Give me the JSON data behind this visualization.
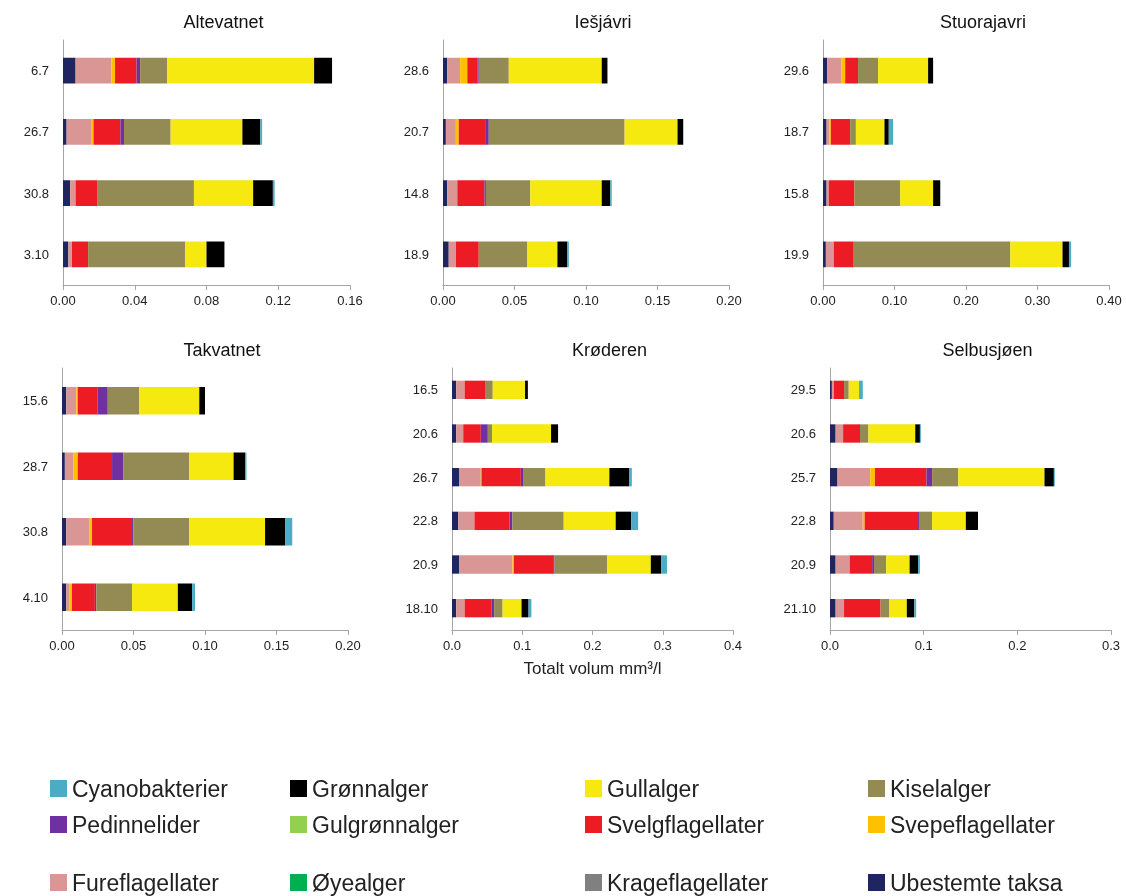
{
  "chart_data": [
    {
      "type": "bar",
      "orientation": "horizontal",
      "stacked": true,
      "title": "Altevatnet",
      "legend": "bottom",
      "categories": [
        "6.7",
        "26.7",
        "30.8",
        "3.10"
      ],
      "xlim": [
        0,
        0.16
      ],
      "xticks": [
        {
          "value": 0,
          "label": "0.00"
        },
        {
          "value": 0.04,
          "label": "0.04"
        },
        {
          "value": 0.08,
          "label": "0.08"
        },
        {
          "value": 0.12,
          "label": "0.12"
        },
        {
          "value": 0.16,
          "label": "0.16"
        }
      ],
      "series": [
        {
          "name": "Ubestemte taksa",
          "color": "#1f255e",
          "values": [
            0.007,
            0.002,
            0.004,
            0.003
          ]
        },
        {
          "name": "Krageflagellater",
          "color": "#808080",
          "values": [
            null,
            null,
            null,
            null
          ]
        },
        {
          "name": "Øyealger",
          "color": "#00b050",
          "values": [
            null,
            null,
            null,
            null
          ]
        },
        {
          "name": "Fureflagellater",
          "color": "#da9694",
          "values": [
            0.02,
            0.014,
            0.003,
            0.002
          ]
        },
        {
          "name": "Svepeflagellater",
          "color": "#ffc000",
          "values": [
            0.002,
            0.001,
            null,
            null
          ]
        },
        {
          "name": "Svelgflagellater",
          "color": "#ed1c24",
          "values": [
            0.012,
            0.015,
            0.012,
            0.009
          ]
        },
        {
          "name": "Gulgrønnalger",
          "color": "#92d050",
          "values": [
            null,
            null,
            null,
            null
          ]
        },
        {
          "name": "Pedinnelider",
          "color": "#7030a0",
          "values": [
            0.002,
            0.002,
            null,
            null
          ]
        },
        {
          "name": "Kiselalger",
          "color": "#948a54",
          "values": [
            0.015,
            0.026,
            0.054,
            0.054
          ]
        },
        {
          "name": "Gullalger",
          "color": "#f5e90f",
          "values": [
            0.082,
            0.04,
            0.033,
            0.012
          ]
        },
        {
          "name": "Grønnalger",
          "color": "#000000",
          "values": [
            0.01,
            0.01,
            0.011,
            0.01
          ]
        },
        {
          "name": "Cyanobakterier",
          "color": "#4bacc6",
          "values": [
            null,
            0.001,
            0.001,
            null
          ]
        }
      ]
    },
    {
      "type": "bar",
      "orientation": "horizontal",
      "stacked": true,
      "title": "Iešjávri",
      "categories": [
        "28.6",
        "20.7",
        "14.8",
        "18.9"
      ],
      "xlim": [
        0,
        0.2
      ],
      "xticks": [
        {
          "value": 0,
          "label": "0.00"
        },
        {
          "value": 0.05,
          "label": "0.05"
        },
        {
          "value": 0.1,
          "label": "0.10"
        },
        {
          "value": 0.15,
          "label": "0.15"
        },
        {
          "value": 0.2,
          "label": "0.20"
        }
      ],
      "series": [
        {
          "color": "#1f255e",
          "values": [
            0.003,
            0.002,
            0.003,
            0.004
          ]
        },
        {
          "color": "#da9694",
          "values": [
            0.009,
            0.007,
            0.007,
            0.005
          ]
        },
        {
          "color": "#ffc000",
          "values": [
            0.005,
            0.002,
            null,
            null
          ]
        },
        {
          "color": "#ed1c24",
          "values": [
            0.007,
            0.019,
            0.019,
            0.016
          ]
        },
        {
          "color": "#7030a0",
          "values": [
            0.001,
            0.002,
            0.001,
            null
          ]
        },
        {
          "color": "#948a54",
          "values": [
            0.021,
            0.095,
            0.031,
            0.034
          ]
        },
        {
          "color": "#f5e90f",
          "values": [
            0.065,
            0.037,
            0.05,
            0.021
          ]
        },
        {
          "color": "#000000",
          "values": [
            0.004,
            0.004,
            0.006,
            0.007
          ]
        },
        {
          "color": "#4bacc6",
          "values": [
            null,
            null,
            0.001,
            0.001
          ]
        }
      ]
    },
    {
      "type": "bar",
      "orientation": "horizontal",
      "stacked": true,
      "title": "Stuorajavri",
      "categories": [
        "29.6",
        "18.7",
        "15.8",
        "19.9"
      ],
      "xlim": [
        0,
        0.4
      ],
      "xticks": [
        {
          "value": 0,
          "label": "0.00"
        },
        {
          "value": 0.1,
          "label": "0.10"
        },
        {
          "value": 0.2,
          "label": "0.20"
        },
        {
          "value": 0.3,
          "label": "0.30"
        },
        {
          "value": 0.4,
          "label": "0.40"
        }
      ],
      "series": [
        {
          "color": "#1f255e",
          "values": [
            0.006,
            0.005,
            0.005,
            0.004
          ]
        },
        {
          "color": "#da9694",
          "values": [
            0.02,
            0.004,
            0.003,
            0.011
          ]
        },
        {
          "color": "#ffc000",
          "values": [
            0.005,
            0.002,
            null,
            null
          ]
        },
        {
          "color": "#ed1c24",
          "values": [
            0.018,
            0.027,
            0.036,
            0.028
          ]
        },
        {
          "color": "#948a54",
          "values": [
            0.028,
            0.008,
            0.064,
            0.219
          ]
        },
        {
          "color": "#f5e90f",
          "values": [
            0.07,
            0.04,
            0.046,
            0.073
          ]
        },
        {
          "color": "#000000",
          "values": [
            0.007,
            0.006,
            0.01,
            0.009
          ]
        },
        {
          "color": "#4bacc6",
          "values": [
            null,
            0.006,
            null,
            0.003
          ]
        }
      ]
    },
    {
      "type": "bar",
      "orientation": "horizontal",
      "stacked": true,
      "title": "Takvatnet",
      "categories": [
        "15.6",
        "28.7",
        "30.8",
        "4.10"
      ],
      "xlim": [
        0,
        0.2
      ],
      "xticks": [
        {
          "value": 0,
          "label": "0.00"
        },
        {
          "value": 0.05,
          "label": "0.05"
        },
        {
          "value": 0.1,
          "label": "0.10"
        },
        {
          "value": 0.15,
          "label": "0.15"
        },
        {
          "value": 0.2,
          "label": "0.20"
        }
      ],
      "series": [
        {
          "color": "#1f255e",
          "values": [
            0.003,
            0.002,
            0.003,
            0.003
          ]
        },
        {
          "color": "#da9694",
          "values": [
            0.007,
            0.006,
            0.016,
            0.002
          ]
        },
        {
          "color": "#ffc000",
          "values": [
            0.001,
            0.003,
            0.002,
            0.002
          ]
        },
        {
          "color": "#ed1c24",
          "values": [
            0.014,
            0.024,
            0.028,
            0.016
          ]
        },
        {
          "color": "#7030a0",
          "values": [
            0.007,
            0.008,
            0.001,
            0.001
          ]
        },
        {
          "color": "#948a54",
          "values": [
            0.022,
            0.046,
            0.039,
            0.025
          ]
        },
        {
          "color": "#f5e90f",
          "values": [
            0.042,
            0.031,
            0.053,
            0.032
          ]
        },
        {
          "color": "#000000",
          "values": [
            0.004,
            0.008,
            0.014,
            0.01
          ]
        },
        {
          "color": "#4bacc6",
          "values": [
            null,
            0.001,
            0.005,
            0.002
          ]
        }
      ]
    },
    {
      "type": "bar",
      "orientation": "horizontal",
      "stacked": true,
      "title": "Krøderen",
      "xlabel": "Totalt volum mm³/l",
      "categories": [
        "16.5",
        "20.6",
        "26.7",
        "22.8",
        "20.9",
        "18.10"
      ],
      "xlim": [
        0,
        0.4
      ],
      "xticks": [
        {
          "value": 0,
          "label": "0.0"
        },
        {
          "value": 0.1,
          "label": "0.1"
        },
        {
          "value": 0.2,
          "label": "0.2"
        },
        {
          "value": 0.3,
          "label": "0.3"
        },
        {
          "value": 0.4,
          "label": "0.4"
        }
      ],
      "series": [
        {
          "color": "#1f255e",
          "values": [
            0.006,
            0.006,
            0.01,
            0.009,
            0.01,
            0.006
          ]
        },
        {
          "color": "#da9694",
          "values": [
            0.012,
            0.01,
            0.031,
            0.023,
            0.076,
            0.012
          ]
        },
        {
          "color": "#ffc000",
          "values": [
            null,
            null,
            0.001,
            null,
            0.002,
            null
          ]
        },
        {
          "color": "#ed1c24",
          "values": [
            0.03,
            0.025,
            0.056,
            0.05,
            0.056,
            0.038
          ]
        },
        {
          "color": "#7030a0",
          "values": [
            null,
            0.01,
            0.004,
            0.004,
            0.002,
            0.004
          ]
        },
        {
          "color": "#948a54",
          "values": [
            0.01,
            0.006,
            0.031,
            0.073,
            0.075,
            0.012
          ]
        },
        {
          "color": "#f5e90f",
          "values": [
            0.046,
            0.084,
            0.091,
            0.074,
            0.062,
            0.027
          ]
        },
        {
          "color": "#000000",
          "values": [
            0.004,
            0.01,
            0.028,
            0.022,
            0.015,
            0.01
          ]
        },
        {
          "color": "#4bacc6",
          "values": [
            null,
            null,
            0.004,
            0.01,
            0.008,
            0.004
          ]
        }
      ]
    },
    {
      "type": "bar",
      "orientation": "horizontal",
      "stacked": true,
      "title": "Selbusjøen",
      "categories": [
        "29.5",
        "20.6",
        "25.7",
        "22.8",
        "20.9",
        "21.10"
      ],
      "xlim": [
        0,
        0.3
      ],
      "xticks": [
        {
          "value": 0,
          "label": "0.0"
        },
        {
          "value": 0.1,
          "label": "0.1"
        },
        {
          "value": 0.2,
          "label": "0.2"
        },
        {
          "value": 0.3,
          "label": "0.3"
        }
      ],
      "series": [
        {
          "color": "#1f255e",
          "values": [
            0.002,
            0.006,
            0.008,
            0.004,
            0.006,
            0.006
          ]
        },
        {
          "color": "#da9694",
          "values": [
            0.002,
            0.008,
            0.035,
            0.031,
            0.015,
            0.009
          ]
        },
        {
          "color": "#ffc000",
          "values": [
            null,
            null,
            0.005,
            0.002,
            null,
            null
          ]
        },
        {
          "color": "#ed1c24",
          "values": [
            0.011,
            0.017,
            0.055,
            0.057,
            0.024,
            0.039
          ]
        },
        {
          "color": "#7030a0",
          "values": [
            null,
            0.001,
            0.006,
            0.001,
            0.002,
            null
          ]
        },
        {
          "color": "#948a54",
          "values": [
            0.005,
            0.009,
            0.028,
            0.014,
            0.013,
            0.009
          ]
        },
        {
          "color": "#f5e90f",
          "values": [
            0.011,
            0.05,
            0.092,
            0.036,
            0.025,
            0.019
          ]
        },
        {
          "color": "#000000",
          "values": [
            null,
            0.005,
            0.01,
            0.013,
            0.009,
            0.008
          ]
        },
        {
          "color": "#4bacc6",
          "values": [
            0.004,
            0.001,
            0.001,
            null,
            0.002,
            0.002
          ]
        }
      ]
    }
  ]
}
